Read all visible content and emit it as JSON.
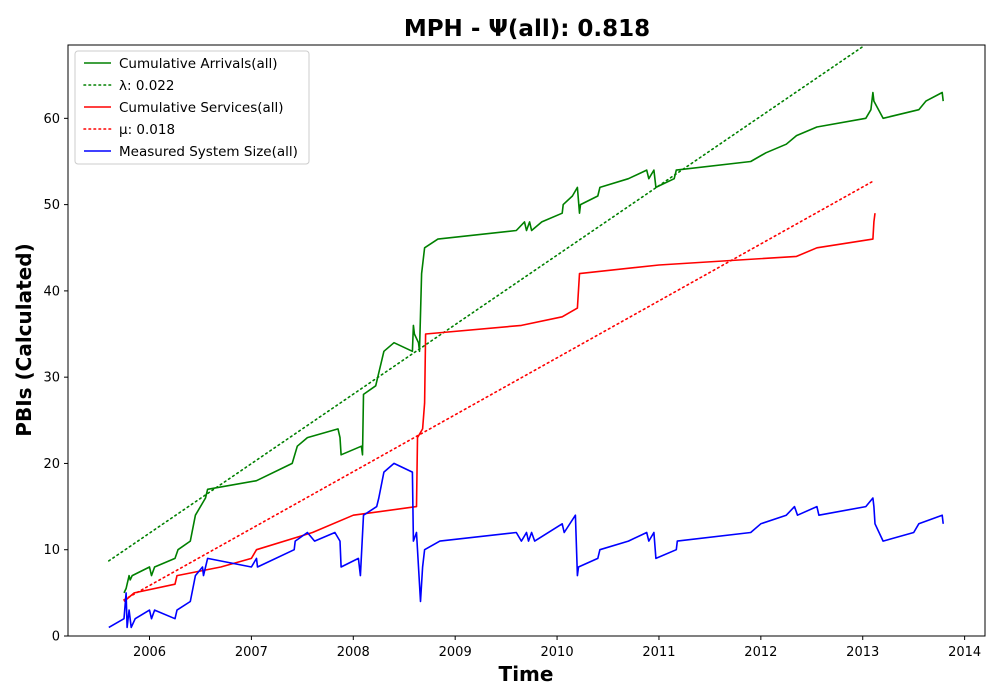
{
  "chart_data": {
    "type": "line",
    "title": "MPH -  Ψ(all): 0.818",
    "xlabel": "Time",
    "ylabel": "PBIs (Calculated)",
    "xlim": [
      2005.2,
      2014.2
    ],
    "ylim": [
      0,
      68.5
    ],
    "x_ticks": [
      2006,
      2007,
      2008,
      2009,
      2010,
      2011,
      2012,
      2013,
      2014
    ],
    "x_tick_labels": [
      "2006",
      "2007",
      "2008",
      "2009",
      "2010",
      "2011",
      "2012",
      "2013",
      "2014"
    ],
    "y_ticks": [
      0,
      10,
      20,
      30,
      40,
      50,
      60
    ],
    "y_tick_labels": [
      "0",
      "10",
      "20",
      "30",
      "40",
      "50",
      "60"
    ],
    "grid": false,
    "legend_position": "top-left",
    "series": [
      {
        "name": "Cumulative Arrivals(all)",
        "color": "#008000",
        "style": "solid",
        "points": [
          [
            2005.75,
            5
          ],
          [
            2005.77,
            5.5
          ],
          [
            2005.78,
            6
          ],
          [
            2005.8,
            7
          ],
          [
            2005.81,
            6.5
          ],
          [
            2005.83,
            7
          ],
          [
            2006.0,
            8
          ],
          [
            2006.02,
            7
          ],
          [
            2006.05,
            8
          ],
          [
            2006.25,
            9
          ],
          [
            2006.28,
            10
          ],
          [
            2006.4,
            11
          ],
          [
            2006.45,
            14
          ],
          [
            2006.55,
            16
          ],
          [
            2006.57,
            17
          ],
          [
            2007.05,
            18
          ],
          [
            2007.4,
            20
          ],
          [
            2007.45,
            22
          ],
          [
            2007.55,
            23
          ],
          [
            2007.85,
            24
          ],
          [
            2007.87,
            23
          ],
          [
            2007.88,
            21
          ],
          [
            2008.08,
            22
          ],
          [
            2008.09,
            21
          ],
          [
            2008.1,
            28
          ],
          [
            2008.22,
            29
          ],
          [
            2008.3,
            33
          ],
          [
            2008.4,
            34
          ],
          [
            2008.58,
            33
          ],
          [
            2008.59,
            36
          ],
          [
            2008.6,
            35
          ],
          [
            2008.64,
            34
          ],
          [
            2008.65,
            33
          ],
          [
            2008.67,
            42
          ],
          [
            2008.7,
            45
          ],
          [
            2008.83,
            46
          ],
          [
            2009.6,
            47
          ],
          [
            2009.68,
            48
          ],
          [
            2009.7,
            47
          ],
          [
            2009.73,
            48
          ],
          [
            2009.75,
            47
          ],
          [
            2009.85,
            48
          ],
          [
            2010.05,
            49
          ],
          [
            2010.06,
            50
          ],
          [
            2010.15,
            51
          ],
          [
            2010.2,
            52
          ],
          [
            2010.22,
            49
          ],
          [
            2010.23,
            50
          ],
          [
            2010.4,
            51
          ],
          [
            2010.42,
            52
          ],
          [
            2010.7,
            53
          ],
          [
            2010.88,
            54
          ],
          [
            2010.9,
            53
          ],
          [
            2010.95,
            54
          ],
          [
            2010.97,
            52
          ],
          [
            2011.15,
            53
          ],
          [
            2011.17,
            54
          ],
          [
            2011.9,
            55
          ],
          [
            2012.05,
            56
          ],
          [
            2012.25,
            57
          ],
          [
            2012.35,
            58
          ],
          [
            2012.55,
            59
          ],
          [
            2013.03,
            60
          ],
          [
            2013.08,
            61
          ],
          [
            2013.1,
            63
          ],
          [
            2013.11,
            62
          ],
          [
            2013.2,
            60
          ],
          [
            2013.55,
            61
          ],
          [
            2013.62,
            62
          ],
          [
            2013.78,
            63
          ],
          [
            2013.79,
            62
          ]
        ]
      },
      {
        "name": "λ: 0.022",
        "color": "#008000",
        "style": "dotted",
        "points": [
          [
            2005.6,
            8.7
          ],
          [
            2013.0,
            68.3
          ]
        ]
      },
      {
        "name": "Cumulative Services(all)",
        "color": "#ff0000",
        "style": "solid",
        "points": [
          [
            2005.75,
            4
          ],
          [
            2005.85,
            5
          ],
          [
            2006.25,
            6
          ],
          [
            2006.27,
            7
          ],
          [
            2006.7,
            8
          ],
          [
            2007.0,
            9
          ],
          [
            2007.05,
            10
          ],
          [
            2007.6,
            12
          ],
          [
            2008.0,
            14
          ],
          [
            2008.62,
            15
          ],
          [
            2008.63,
            23
          ],
          [
            2008.68,
            24
          ],
          [
            2008.7,
            27
          ],
          [
            2008.71,
            35
          ],
          [
            2009.65,
            36
          ],
          [
            2010.05,
            37
          ],
          [
            2010.2,
            38
          ],
          [
            2010.22,
            42
          ],
          [
            2011.0,
            43
          ],
          [
            2012.35,
            44
          ],
          [
            2012.55,
            45
          ],
          [
            2013.1,
            46
          ],
          [
            2013.11,
            48
          ],
          [
            2013.12,
            49
          ]
        ]
      },
      {
        "name": "μ: 0.018",
        "color": "#ff0000",
        "style": "dotted",
        "points": [
          [
            2005.75,
            4.2
          ],
          [
            2013.1,
            52.7
          ]
        ]
      },
      {
        "name": "Measured System Size(all)",
        "color": "#0000ff",
        "style": "solid",
        "points": [
          [
            2005.6,
            1
          ],
          [
            2005.75,
            2
          ],
          [
            2005.77,
            5
          ],
          [
            2005.78,
            1
          ],
          [
            2005.8,
            3
          ],
          [
            2005.82,
            1
          ],
          [
            2005.86,
            2
          ],
          [
            2006.0,
            3
          ],
          [
            2006.02,
            2
          ],
          [
            2006.05,
            3
          ],
          [
            2006.25,
            2
          ],
          [
            2006.27,
            3
          ],
          [
            2006.4,
            4
          ],
          [
            2006.45,
            7
          ],
          [
            2006.52,
            8
          ],
          [
            2006.53,
            7
          ],
          [
            2006.57,
            9
          ],
          [
            2007.0,
            8
          ],
          [
            2007.05,
            9
          ],
          [
            2007.06,
            8
          ],
          [
            2007.42,
            10
          ],
          [
            2007.43,
            11
          ],
          [
            2007.55,
            12
          ],
          [
            2007.62,
            11
          ],
          [
            2007.82,
            12
          ],
          [
            2007.87,
            11
          ],
          [
            2007.88,
            8
          ],
          [
            2008.05,
            9
          ],
          [
            2008.07,
            7
          ],
          [
            2008.1,
            14
          ],
          [
            2008.23,
            15
          ],
          [
            2008.25,
            16
          ],
          [
            2008.3,
            19
          ],
          [
            2008.4,
            20
          ],
          [
            2008.58,
            19
          ],
          [
            2008.59,
            11
          ],
          [
            2008.62,
            12
          ],
          [
            2008.64,
            8
          ],
          [
            2008.66,
            4
          ],
          [
            2008.68,
            8
          ],
          [
            2008.7,
            10
          ],
          [
            2008.85,
            11
          ],
          [
            2009.6,
            12
          ],
          [
            2009.65,
            11
          ],
          [
            2009.7,
            12
          ],
          [
            2009.72,
            11
          ],
          [
            2009.75,
            12
          ],
          [
            2009.78,
            11
          ],
          [
            2010.05,
            13
          ],
          [
            2010.07,
            12
          ],
          [
            2010.18,
            14
          ],
          [
            2010.2,
            7
          ],
          [
            2010.21,
            8
          ],
          [
            2010.4,
            9
          ],
          [
            2010.42,
            10
          ],
          [
            2010.7,
            11
          ],
          [
            2010.88,
            12
          ],
          [
            2010.9,
            11
          ],
          [
            2010.95,
            12
          ],
          [
            2010.97,
            9
          ],
          [
            2011.17,
            10
          ],
          [
            2011.18,
            11
          ],
          [
            2011.9,
            12
          ],
          [
            2012.0,
            13
          ],
          [
            2012.25,
            14
          ],
          [
            2012.33,
            15
          ],
          [
            2012.36,
            14
          ],
          [
            2012.55,
            15
          ],
          [
            2012.57,
            14
          ],
          [
            2013.03,
            15
          ],
          [
            2013.1,
            16
          ],
          [
            2013.11,
            15
          ],
          [
            2013.12,
            13
          ],
          [
            2013.2,
            11
          ],
          [
            2013.5,
            12
          ],
          [
            2013.55,
            13
          ],
          [
            2013.78,
            14
          ],
          [
            2013.79,
            13
          ]
        ]
      }
    ]
  }
}
